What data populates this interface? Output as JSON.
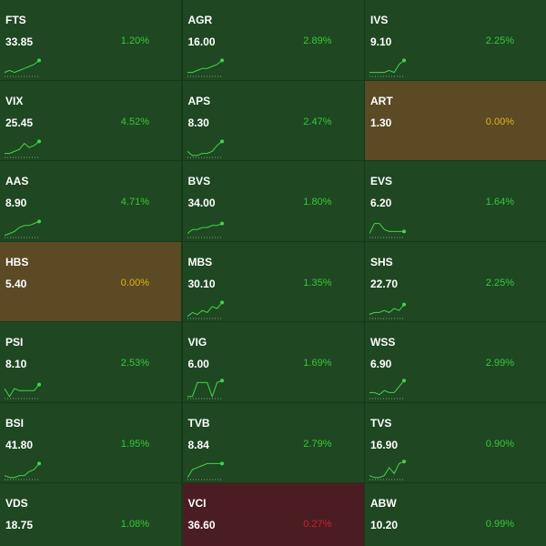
{
  "tiles": [
    {
      "symbol": "FTS",
      "price": "33.85",
      "change": "1.20%",
      "tone": "up",
      "spark": [
        2,
        3,
        2,
        3,
        4,
        5,
        6,
        8
      ]
    },
    {
      "symbol": "AGR",
      "price": "16.00",
      "change": "2.89%",
      "tone": "up",
      "spark": [
        2,
        2,
        3,
        4,
        4,
        5,
        6,
        8
      ]
    },
    {
      "symbol": "IVS",
      "price": "9.10",
      "change": "2.25%",
      "tone": "up",
      "spark": [
        2,
        2,
        2,
        2,
        3,
        2,
        6,
        8
      ]
    },
    {
      "symbol": "VIX",
      "price": "25.45",
      "change": "4.52%",
      "tone": "up",
      "spark": [
        2,
        2,
        3,
        4,
        7,
        5,
        6,
        8
      ]
    },
    {
      "symbol": "APS",
      "price": "8.30",
      "change": "2.47%",
      "tone": "up",
      "spark": [
        3,
        1,
        1,
        2,
        2,
        3,
        6,
        8
      ]
    },
    {
      "symbol": "ART",
      "price": "1.30",
      "change": "0.00%",
      "tone": "flat"
    },
    {
      "symbol": "AAS",
      "price": "8.90",
      "change": "4.71%",
      "tone": "up",
      "spark": [
        1,
        2,
        3,
        5,
        6,
        6,
        7,
        8
      ]
    },
    {
      "symbol": "BVS",
      "price": "34.00",
      "change": "1.80%",
      "tone": "up",
      "spark": [
        2,
        4,
        4,
        5,
        5,
        6,
        6,
        7
      ]
    },
    {
      "symbol": "EVS",
      "price": "6.20",
      "change": "1.64%",
      "tone": "up",
      "spark": [
        2,
        7,
        7,
        4,
        3,
        3,
        3,
        3
      ]
    },
    {
      "symbol": "HBS",
      "price": "5.40",
      "change": "0.00%",
      "tone": "flat"
    },
    {
      "symbol": "MBS",
      "price": "30.10",
      "change": "1.35%",
      "tone": "up",
      "spark": [
        1,
        3,
        2,
        4,
        3,
        6,
        5,
        8
      ]
    },
    {
      "symbol": "SHS",
      "price": "22.70",
      "change": "2.25%",
      "tone": "up",
      "spark": [
        2,
        3,
        3,
        4,
        3,
        5,
        4,
        7
      ]
    },
    {
      "symbol": "PSI",
      "price": "8.10",
      "change": "2.53%",
      "tone": "up",
      "spark": [
        5,
        1,
        5,
        4,
        4,
        4,
        4,
        7
      ]
    },
    {
      "symbol": "VIG",
      "price": "6.00",
      "change": "1.69%",
      "tone": "up",
      "spark": [
        1,
        1,
        8,
        8,
        8,
        1,
        8,
        9
      ]
    },
    {
      "symbol": "WSS",
      "price": "6.90",
      "change": "2.99%",
      "tone": "up",
      "spark": [
        3,
        3,
        2,
        4,
        3,
        3,
        6,
        9
      ]
    },
    {
      "symbol": "BSI",
      "price": "41.80",
      "change": "1.95%",
      "tone": "up",
      "spark": [
        2,
        1,
        1,
        2,
        2,
        4,
        5,
        8
      ]
    },
    {
      "symbol": "TVB",
      "price": "8.84",
      "change": "2.79%",
      "tone": "up",
      "spark": [
        1,
        5,
        6,
        7,
        8,
        8,
        8,
        8
      ]
    },
    {
      "symbol": "TVS",
      "price": "16.90",
      "change": "0.90%",
      "tone": "up",
      "spark": [
        2,
        1,
        1,
        2,
        6,
        3,
        8,
        9
      ]
    },
    {
      "symbol": "VDS",
      "price": "18.75",
      "change": "1.08%",
      "tone": "up"
    },
    {
      "symbol": "VCI",
      "price": "36.60",
      "change": "0.27%",
      "tone": "down"
    },
    {
      "symbol": "ABW",
      "price": "10.20",
      "change": "0.99%",
      "tone": "up"
    }
  ]
}
